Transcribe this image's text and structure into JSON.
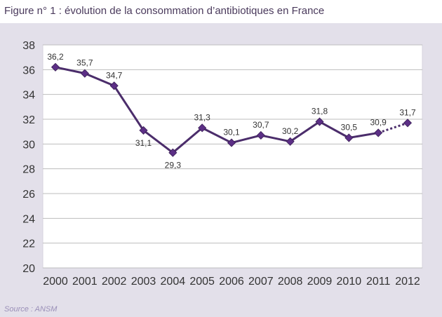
{
  "figure": {
    "title": "Figure n° 1 : évolution de la consommation d’antibiotiques en France",
    "source": "Source : ANSM"
  },
  "colors": {
    "line": "#4b2d6b",
    "marker": "#5c2f86",
    "plot_background": "#ffffff",
    "outer_background": "#e3e0ea",
    "gridline": "#bdbdbd",
    "title_text": "#4a3a5c",
    "axis_text": "#333333",
    "source_text": "#9a8fb8"
  },
  "chart_data": {
    "type": "line",
    "title": "Figure n° 1 : évolution de la consommation d’antibiotiques en France",
    "xlabel": "",
    "ylabel": "",
    "categories": [
      "2000",
      "2001",
      "2002",
      "2003",
      "2004",
      "2005",
      "2006",
      "2007",
      "2008",
      "2009",
      "2010",
      "2011",
      "2012"
    ],
    "series": [
      {
        "values": [
          36.2,
          35.7,
          34.7,
          31.1,
          29.3,
          31.3,
          30.1,
          30.7,
          30.2,
          31.8,
          30.5,
          30.9,
          31.7
        ],
        "data_labels": [
          "36,2",
          "35,7",
          "34,7",
          "31,1",
          "29,3",
          "31,3",
          "30,1",
          "30,7",
          "30,2",
          "31,8",
          "30,5",
          "30,9",
          "31,7"
        ],
        "dashed_last_segment": true
      }
    ],
    "ylim": [
      20,
      38
    ],
    "yticks": [
      20,
      22,
      24,
      26,
      28,
      30,
      32,
      34,
      36,
      38
    ],
    "ytick_labels": [
      "20",
      "22",
      "24",
      "26",
      "28",
      "30",
      "32",
      "34",
      "36",
      "38"
    ],
    "grid": true,
    "legend": "none"
  }
}
